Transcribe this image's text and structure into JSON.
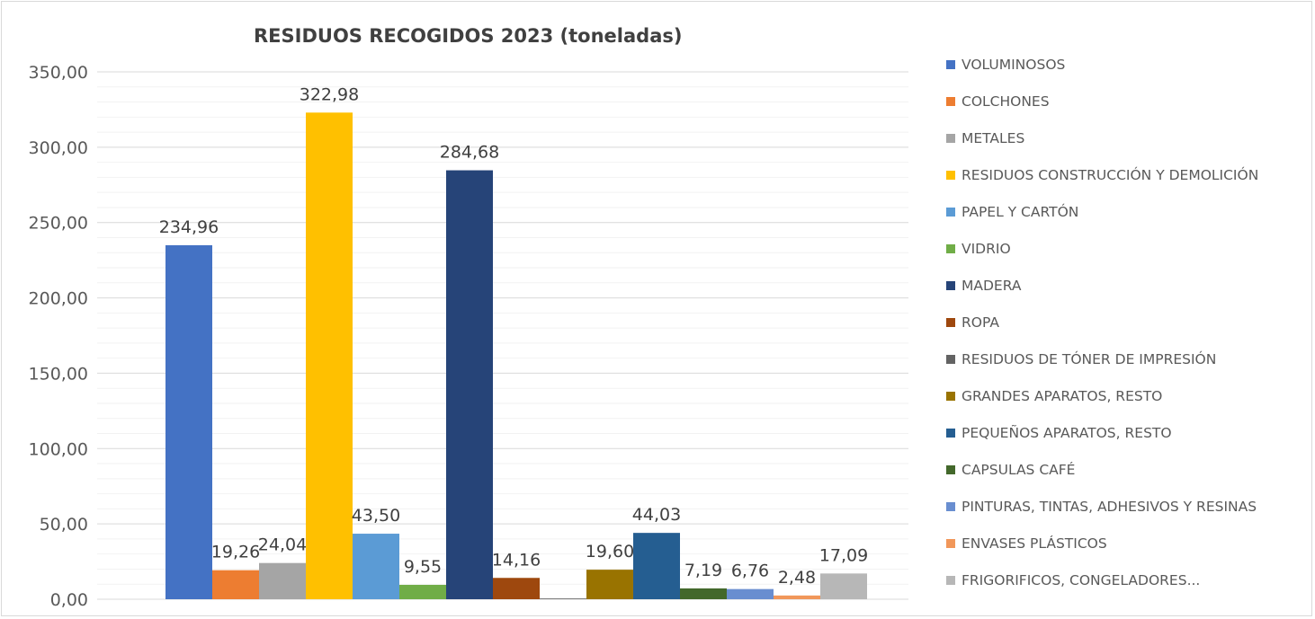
{
  "chart_data": {
    "type": "bar",
    "title": "RESIDUOS RECOGIDOS 2023 (toneladas)",
    "xlabel": "",
    "ylabel": "",
    "ylim": [
      0,
      350
    ],
    "yticks": [
      "0,00",
      "50,00",
      "100,00",
      "150,00",
      "200,00",
      "250,00",
      "300,00",
      "350,00"
    ],
    "grid": true,
    "legend_position": "right",
    "series": [
      {
        "name": "VOLUMINOSOS",
        "value": 234.96,
        "label": "234,96",
        "color": "#4472c4"
      },
      {
        "name": "COLCHONES",
        "value": 19.26,
        "label": "19,26",
        "color": "#ed7d31"
      },
      {
        "name": "METALES",
        "value": 24.04,
        "label": "24,04",
        "color": "#a5a5a5"
      },
      {
        "name": "RESIDUOS CONSTRUCCIÓN Y DEMOLICIÓN",
        "value": 322.98,
        "label": "322,98",
        "color": "#ffc000"
      },
      {
        "name": "PAPEL Y CARTÓN",
        "value": 43.5,
        "label": "43,50",
        "color": "#5b9bd5"
      },
      {
        "name": "VIDRIO",
        "value": 9.55,
        "label": "9,55",
        "color": "#70ad47"
      },
      {
        "name": "MADERA",
        "value": 284.68,
        "label": "284,68",
        "color": "#264478"
      },
      {
        "name": "ROPA",
        "value": 14.16,
        "label": "14,16",
        "color": "#9e480e"
      },
      {
        "name": "RESIDUOS DE TÓNER DE IMPRESIÓN",
        "value": 0.5,
        "label": null,
        "color": "#636363"
      },
      {
        "name": "GRANDES APARATOS, RESTO",
        "value": 19.6,
        "label": "19,60",
        "color": "#997300"
      },
      {
        "name": "PEQUEÑOS APARATOS, RESTO",
        "value": 44.03,
        "label": "44,03",
        "color": "#255e91"
      },
      {
        "name": "CAPSULAS CAFÉ",
        "value": 7.19,
        "label": "7,19",
        "color": "#43682b"
      },
      {
        "name": "PINTURAS, TINTAS, ADHESIVOS Y RESINAS",
        "value": 6.76,
        "label": "6,76",
        "color": "#698ed0"
      },
      {
        "name": "ENVASES PLÁSTICOS",
        "value": 2.48,
        "label": "2,48",
        "color": "#f1975a"
      },
      {
        "name": "FRIGORIFICOS, CONGELADORES...",
        "value": 17.09,
        "label": "17,09",
        "color": "#b7b7b7"
      }
    ]
  }
}
